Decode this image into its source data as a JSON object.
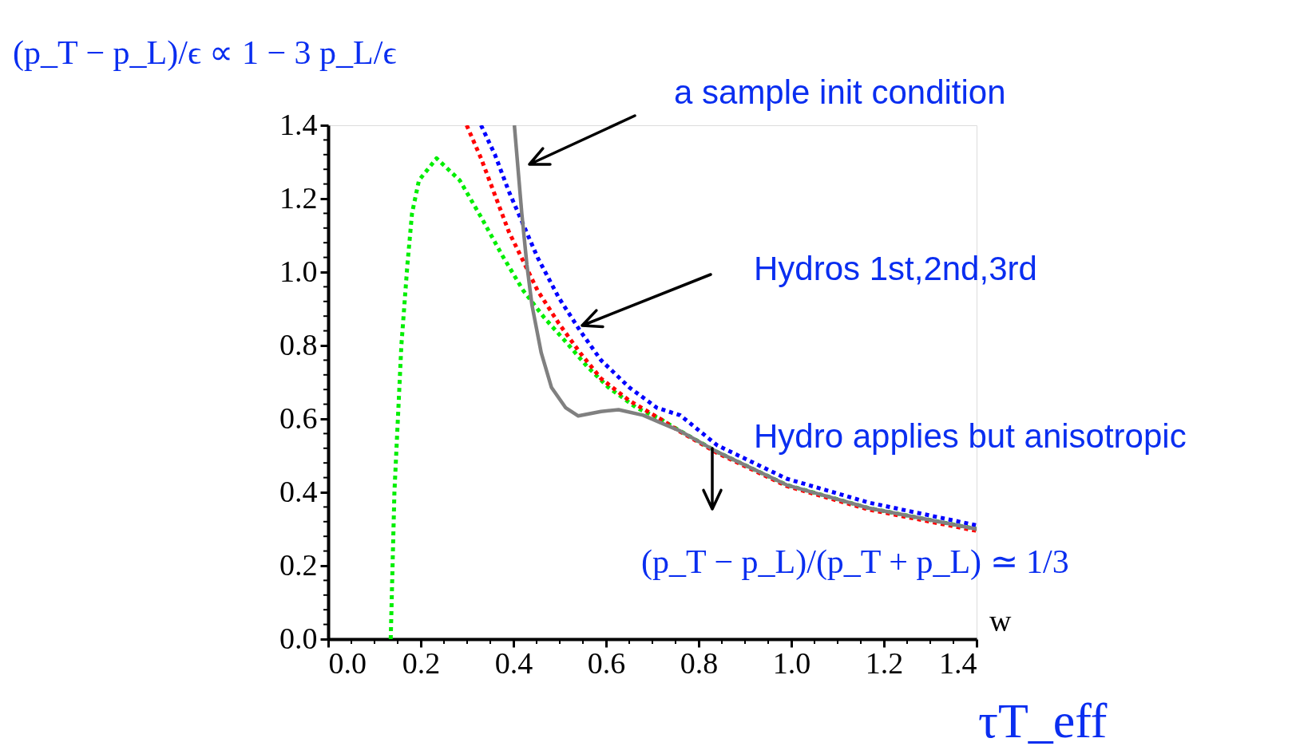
{
  "chart_data": {
    "type": "line",
    "xlabel": "w",
    "ylabel": "(p_T − p_L)/ϵ ∝ 1 − 3 p_L/ϵ",
    "xlim": [
      0,
      1.4
    ],
    "ylim": [
      0,
      1.4
    ],
    "xticks": [
      {
        "value": 0,
        "label": "0.0"
      },
      {
        "value": 0.05,
        "label": null
      },
      {
        "value": 0.1,
        "label": null
      },
      {
        "value": 0.15,
        "label": null
      },
      {
        "value": 0.2,
        "label": "0.2"
      },
      {
        "value": 0.25,
        "label": null
      },
      {
        "value": 0.3,
        "label": null
      },
      {
        "value": 0.35,
        "label": null
      },
      {
        "value": 0.4,
        "label": "0.4"
      },
      {
        "value": 0.45,
        "label": null
      },
      {
        "value": 0.5,
        "label": null
      },
      {
        "value": 0.55,
        "label": null
      },
      {
        "value": 0.6,
        "label": "0.6"
      },
      {
        "value": 0.65,
        "label": null
      },
      {
        "value": 0.7,
        "label": null
      },
      {
        "value": 0.75,
        "label": null
      },
      {
        "value": 0.8,
        "label": "0.8"
      },
      {
        "value": 0.85,
        "label": null
      },
      {
        "value": 0.9,
        "label": null
      },
      {
        "value": 0.95,
        "label": null
      },
      {
        "value": 1.0,
        "label": "1.0"
      },
      {
        "value": 1.05,
        "label": null
      },
      {
        "value": 1.1,
        "label": null
      },
      {
        "value": 1.15,
        "label": null
      },
      {
        "value": 1.2,
        "label": "1.2"
      },
      {
        "value": 1.25,
        "label": null
      },
      {
        "value": 1.3,
        "label": null
      },
      {
        "value": 1.35,
        "label": null
      },
      {
        "value": 1.4,
        "label": "1.4"
      }
    ],
    "yticks": [
      {
        "value": 0,
        "label": "0.0"
      },
      {
        "value": 0.04,
        "label": null
      },
      {
        "value": 0.08,
        "label": null
      },
      {
        "value": 0.12,
        "label": null
      },
      {
        "value": 0.16,
        "label": null
      },
      {
        "value": 0.2,
        "label": "0.2"
      },
      {
        "value": 0.24,
        "label": null
      },
      {
        "value": 0.28,
        "label": null
      },
      {
        "value": 0.32,
        "label": null
      },
      {
        "value": 0.36,
        "label": null
      },
      {
        "value": 0.4,
        "label": "0.4"
      },
      {
        "value": 0.44,
        "label": null
      },
      {
        "value": 0.48,
        "label": null
      },
      {
        "value": 0.52,
        "label": null
      },
      {
        "value": 0.56,
        "label": null
      },
      {
        "value": 0.6,
        "label": "0.6"
      },
      {
        "value": 0.64,
        "label": null
      },
      {
        "value": 0.68,
        "label": null
      },
      {
        "value": 0.72,
        "label": null
      },
      {
        "value": 0.76,
        "label": null
      },
      {
        "value": 0.8,
        "label": "0.8"
      },
      {
        "value": 0.84,
        "label": null
      },
      {
        "value": 0.88,
        "label": null
      },
      {
        "value": 0.92,
        "label": null
      },
      {
        "value": 0.96,
        "label": null
      },
      {
        "value": 1.0,
        "label": "1.0"
      },
      {
        "value": 1.04,
        "label": null
      },
      {
        "value": 1.08,
        "label": null
      },
      {
        "value": 1.12,
        "label": null
      },
      {
        "value": 1.16,
        "label": null
      },
      {
        "value": 1.2,
        "label": "1.2"
      },
      {
        "value": 1.24,
        "label": null
      },
      {
        "value": 1.28,
        "label": null
      },
      {
        "value": 1.32,
        "label": null
      },
      {
        "value": 1.36,
        "label": null
      },
      {
        "value": 1.4,
        "label": "1.4"
      }
    ],
    "grid": false,
    "series": [
      {
        "color": "#00ee00",
        "line_style": "dotted",
        "x": [
          0.135,
          0.143,
          0.158,
          0.171,
          0.181,
          0.196,
          0.234,
          0.284,
          0.33,
          0.376,
          0.421,
          0.467,
          0.513,
          0.559,
          0.605,
          0.666,
          0.717,
          0.76,
          0.84,
          0.99,
          1.167,
          1.4
        ],
        "values": [
          0.0,
          0.4,
          0.8,
          1.02,
          1.16,
          1.25,
          1.31,
          1.25,
          1.15,
          1.045,
          0.95,
          0.875,
          0.81,
          0.743,
          0.686,
          0.63,
          0.6,
          0.567,
          0.51,
          0.42,
          0.357,
          0.3
        ]
      },
      {
        "color": "#ff0000",
        "line_style": "dotted",
        "x": [
          0.299,
          0.33,
          0.36,
          0.39,
          0.421,
          0.452,
          0.498,
          0.544,
          0.589,
          0.65,
          0.717,
          0.76,
          0.84,
          0.99,
          1.167,
          1.4
        ],
        "values": [
          1.4,
          1.31,
          1.21,
          1.11,
          1.03,
          0.95,
          0.86,
          0.78,
          0.71,
          0.65,
          0.6,
          0.565,
          0.507,
          0.417,
          0.353,
          0.295
        ]
      },
      {
        "color": "#0000ff",
        "line_style": "dotted",
        "x": [
          0.33,
          0.36,
          0.39,
          0.421,
          0.452,
          0.498,
          0.544,
          0.589,
          0.65,
          0.71,
          0.76,
          0.84,
          0.99,
          1.167,
          1.4
        ],
        "values": [
          1.4,
          1.32,
          1.22,
          1.13,
          1.04,
          0.93,
          0.84,
          0.76,
          0.686,
          0.63,
          0.61,
          0.528,
          0.437,
          0.372,
          0.31
        ]
      },
      {
        "color": "#808080",
        "line_style": "solid",
        "x": [
          0.402,
          0.418,
          0.429,
          0.44,
          0.46,
          0.482,
          0.513,
          0.54,
          0.589,
          0.627,
          0.68,
          0.717,
          0.76,
          0.84,
          0.99,
          1.167,
          1.4
        ],
        "values": [
          1.4,
          1.16,
          1.02,
          0.91,
          0.78,
          0.686,
          0.63,
          0.608,
          0.62,
          0.625,
          0.61,
          0.59,
          0.567,
          0.51,
          0.42,
          0.357,
          0.3
        ]
      }
    ],
    "annotations": [
      "a sample init condition",
      "Hydros 1st,2nd,3rd",
      "Hydro applies but anisotropic",
      "(p_T − p_L)/(p_T + p_L) ≃ 1/3",
      "τT_eff"
    ]
  }
}
